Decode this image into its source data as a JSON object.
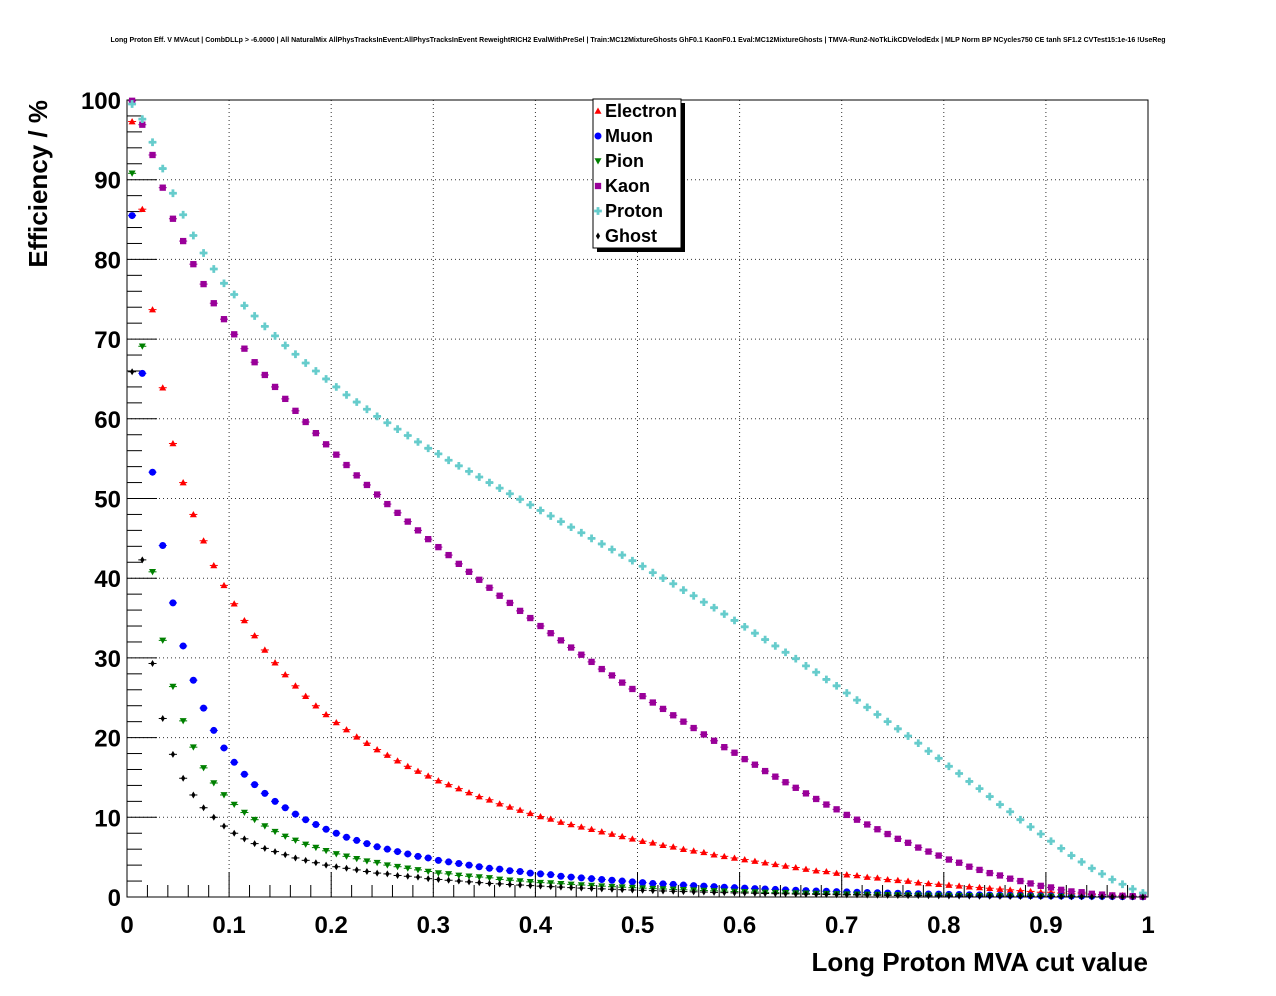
{
  "chart_data": {
    "type": "scatter",
    "title": "Long Proton Eff. V MVAcut | CombDLLp > -6.0000 | All NaturalMix AllPhysTracksInEvent:AllPhysTracksInEvent ReweightRICH2 EvalWithPreSel | Train:MC12MixtureGhosts GhF0.1 KaonF0.1 Eval:MC12MixtureGhosts | TMVA-Run2-NoTkLikCDVelodEdx | MLP Norm BP NCycles750 CE tanh SF1.2 CVTest15:1e-16 !UseReg",
    "xlabel": "Long Proton MVA cut value",
    "ylabel": "Efficiency / %",
    "xlim": [
      0,
      1
    ],
    "ylim": [
      0,
      100
    ],
    "x_ticks": [
      "0",
      "0.1",
      "0.2",
      "0.3",
      "0.4",
      "0.5",
      "0.6",
      "0.7",
      "0.8",
      "0.9",
      "1"
    ],
    "y_ticks": [
      "0",
      "10",
      "20",
      "30",
      "40",
      "50",
      "60",
      "70",
      "80",
      "90",
      "100"
    ],
    "grid": true,
    "legend_position": "top-center",
    "x": [
      0.005,
      0.015,
      0.025,
      0.035,
      0.045,
      0.055,
      0.065,
      0.075,
      0.085,
      0.095,
      0.105,
      0.115,
      0.125,
      0.135,
      0.145,
      0.155,
      0.165,
      0.175,
      0.185,
      0.195,
      0.205,
      0.215,
      0.225,
      0.235,
      0.245,
      0.255,
      0.265,
      0.275,
      0.285,
      0.295,
      0.305,
      0.315,
      0.325,
      0.335,
      0.345,
      0.355,
      0.365,
      0.375,
      0.385,
      0.395,
      0.405,
      0.415,
      0.425,
      0.435,
      0.445,
      0.455,
      0.465,
      0.475,
      0.485,
      0.495,
      0.505,
      0.515,
      0.525,
      0.535,
      0.545,
      0.555,
      0.565,
      0.575,
      0.585,
      0.595,
      0.605,
      0.615,
      0.625,
      0.635,
      0.645,
      0.655,
      0.665,
      0.675,
      0.685,
      0.695,
      0.705,
      0.715,
      0.725,
      0.735,
      0.745,
      0.755,
      0.765,
      0.775,
      0.785,
      0.795,
      0.805,
      0.815,
      0.825,
      0.835,
      0.845,
      0.855,
      0.865,
      0.875,
      0.885,
      0.895,
      0.905,
      0.915,
      0.925,
      0.935,
      0.945,
      0.955,
      0.965,
      0.975,
      0.985,
      0.995
    ],
    "series": [
      {
        "name": "Electron",
        "color": "#ff0000",
        "marker": "triangle-up",
        "values": [
          97.3,
          86.3,
          73.7,
          63.9,
          56.9,
          52.0,
          48.0,
          44.7,
          41.6,
          39.1,
          36.8,
          34.7,
          32.8,
          31.0,
          29.4,
          27.9,
          26.5,
          25.2,
          24.0,
          22.9,
          21.9,
          21.0,
          20.1,
          19.3,
          18.5,
          17.8,
          17.1,
          16.4,
          15.8,
          15.2,
          14.6,
          14.1,
          13.6,
          13.1,
          12.6,
          12.2,
          11.7,
          11.3,
          10.9,
          10.5,
          10.1,
          9.8,
          9.4,
          9.1,
          8.8,
          8.5,
          8.2,
          7.9,
          7.6,
          7.3,
          7.0,
          6.8,
          6.5,
          6.3,
          6.0,
          5.8,
          5.6,
          5.3,
          5.1,
          4.9,
          4.7,
          4.5,
          4.3,
          4.1,
          3.9,
          3.7,
          3.5,
          3.3,
          3.2,
          3.0,
          2.8,
          2.7,
          2.5,
          2.4,
          2.2,
          2.1,
          2.0,
          1.8,
          1.7,
          1.6,
          1.5,
          1.4,
          1.3,
          1.2,
          1.1,
          1.0,
          0.9,
          0.8,
          0.7,
          0.6,
          0.6,
          0.5,
          0.4,
          0.4,
          0.3,
          0.3,
          0.2,
          0.2,
          0.1,
          0.1
        ]
      },
      {
        "name": "Muon",
        "color": "#0000ff",
        "marker": "circle",
        "values": [
          85.5,
          65.7,
          53.3,
          44.1,
          36.9,
          31.5,
          27.2,
          23.7,
          20.9,
          18.7,
          16.9,
          15.4,
          14.1,
          13.0,
          12.0,
          11.2,
          10.4,
          9.7,
          9.1,
          8.5,
          8.0,
          7.5,
          7.1,
          6.7,
          6.3,
          6.0,
          5.7,
          5.4,
          5.1,
          4.9,
          4.6,
          4.4,
          4.2,
          4.0,
          3.8,
          3.6,
          3.5,
          3.3,
          3.2,
          3.0,
          2.9,
          2.8,
          2.6,
          2.5,
          2.4,
          2.3,
          2.2,
          2.1,
          2.0,
          1.9,
          1.8,
          1.7,
          1.65,
          1.58,
          1.5,
          1.43,
          1.36,
          1.3,
          1.23,
          1.17,
          1.11,
          1.05,
          1.0,
          0.95,
          0.9,
          0.85,
          0.8,
          0.76,
          0.72,
          0.68,
          0.64,
          0.6,
          0.56,
          0.53,
          0.5,
          0.47,
          0.44,
          0.41,
          0.38,
          0.36,
          0.33,
          0.31,
          0.29,
          0.27,
          0.25,
          0.23,
          0.21,
          0.19,
          0.17,
          0.16,
          0.14,
          0.13,
          0.11,
          0.1,
          0.09,
          0.08,
          0.06,
          0.05,
          0.04,
          0.03
        ]
      },
      {
        "name": "Pion",
        "color": "#008000",
        "marker": "triangle-down",
        "values": [
          90.8,
          69.1,
          40.8,
          32.2,
          26.4,
          22.1,
          18.8,
          16.2,
          14.3,
          12.8,
          11.6,
          10.6,
          9.7,
          8.9,
          8.2,
          7.6,
          7.1,
          6.6,
          6.2,
          5.8,
          5.4,
          5.1,
          4.8,
          4.5,
          4.3,
          4.0,
          3.8,
          3.6,
          3.4,
          3.2,
          3.0,
          2.9,
          2.7,
          2.6,
          2.5,
          2.4,
          2.2,
          2.1,
          2.0,
          1.9,
          1.8,
          1.75,
          1.66,
          1.58,
          1.5,
          1.43,
          1.36,
          1.29,
          1.23,
          1.17,
          1.11,
          1.05,
          1.0,
          0.95,
          0.9,
          0.86,
          0.81,
          0.77,
          0.73,
          0.69,
          0.65,
          0.62,
          0.58,
          0.55,
          0.52,
          0.49,
          0.46,
          0.44,
          0.41,
          0.39,
          0.36,
          0.34,
          0.32,
          0.3,
          0.28,
          0.26,
          0.24,
          0.23,
          0.21,
          0.19,
          0.18,
          0.16,
          0.15,
          0.14,
          0.13,
          0.12,
          0.11,
          0.1,
          0.09,
          0.08,
          0.07,
          0.06,
          0.05,
          0.05,
          0.04,
          0.03,
          0.03,
          0.02,
          0.02,
          0.01
        ]
      },
      {
        "name": "Kaon",
        "color": "#990099",
        "marker": "square",
        "values": [
          99.9,
          96.9,
          93.1,
          89.0,
          85.1,
          82.3,
          79.4,
          76.9,
          74.5,
          72.5,
          70.6,
          68.8,
          67.1,
          65.5,
          64.0,
          62.5,
          61.0,
          59.6,
          58.2,
          56.8,
          55.5,
          54.2,
          52.9,
          51.7,
          50.5,
          49.3,
          48.2,
          47.1,
          46.0,
          44.9,
          43.9,
          42.9,
          41.8,
          40.8,
          39.8,
          38.8,
          37.8,
          36.9,
          35.9,
          35.0,
          34.0,
          33.1,
          32.2,
          31.3,
          30.4,
          29.5,
          28.6,
          27.8,
          26.9,
          26.1,
          25.2,
          24.4,
          23.6,
          22.8,
          22.0,
          21.2,
          20.4,
          19.6,
          18.8,
          18.1,
          17.3,
          16.6,
          15.8,
          15.1,
          14.4,
          13.7,
          13.0,
          12.3,
          11.6,
          11.0,
          10.3,
          9.7,
          9.1,
          8.5,
          7.9,
          7.3,
          6.8,
          6.2,
          5.7,
          5.2,
          4.7,
          4.3,
          3.8,
          3.4,
          3.0,
          2.7,
          2.3,
          2.0,
          1.7,
          1.4,
          1.2,
          0.9,
          0.7,
          0.6,
          0.4,
          0.3,
          0.2,
          0.15,
          0.1,
          0.05
        ]
      },
      {
        "name": "Proton",
        "color": "#66cccc",
        "marker": "cross",
        "values": [
          99.5,
          97.6,
          94.7,
          91.4,
          88.3,
          85.6,
          83.0,
          80.8,
          78.8,
          77.0,
          75.6,
          74.2,
          72.9,
          71.6,
          70.4,
          69.2,
          68.1,
          67.0,
          66.0,
          65.0,
          64.0,
          63.0,
          62.1,
          61.2,
          60.3,
          59.5,
          58.7,
          57.9,
          57.1,
          56.3,
          55.6,
          54.8,
          54.1,
          53.4,
          52.7,
          52.0,
          51.3,
          50.6,
          49.9,
          49.2,
          48.5,
          47.8,
          47.1,
          46.4,
          45.7,
          45.0,
          44.3,
          43.6,
          42.9,
          42.2,
          41.5,
          40.7,
          40.0,
          39.3,
          38.5,
          37.8,
          37.0,
          36.3,
          35.5,
          34.7,
          33.9,
          33.1,
          32.3,
          31.5,
          30.7,
          29.9,
          29.0,
          28.2,
          27.3,
          26.5,
          25.6,
          24.7,
          23.8,
          22.9,
          22.0,
          21.1,
          20.2,
          19.3,
          18.3,
          17.4,
          16.4,
          15.5,
          14.5,
          13.6,
          12.6,
          11.6,
          10.7,
          9.7,
          8.8,
          7.9,
          7.0,
          6.1,
          5.2,
          4.4,
          3.6,
          2.9,
          2.2,
          1.6,
          1.0,
          0.5
        ]
      },
      {
        "name": "Ghost",
        "color": "#000000",
        "marker": "diamond",
        "values": [
          65.9,
          42.3,
          29.3,
          22.4,
          17.9,
          14.9,
          12.8,
          11.2,
          10.0,
          8.9,
          8.0,
          7.3,
          6.7,
          6.1,
          5.7,
          5.3,
          4.9,
          4.6,
          4.3,
          4.0,
          3.8,
          3.6,
          3.4,
          3.2,
          3.0,
          2.9,
          2.7,
          2.6,
          2.5,
          2.3,
          2.2,
          2.1,
          2.0,
          1.9,
          1.8,
          1.7,
          1.65,
          1.57,
          1.5,
          1.43,
          1.36,
          1.3,
          1.24,
          1.18,
          1.12,
          1.07,
          1.02,
          0.97,
          0.92,
          0.88,
          0.84,
          0.8,
          0.76,
          0.72,
          0.68,
          0.65,
          0.62,
          0.58,
          0.55,
          0.52,
          0.5,
          0.47,
          0.44,
          0.42,
          0.4,
          0.37,
          0.35,
          0.33,
          0.31,
          0.29,
          0.27,
          0.26,
          0.24,
          0.22,
          0.21,
          0.19,
          0.18,
          0.17,
          0.15,
          0.14,
          0.13,
          0.12,
          0.11,
          0.1,
          0.09,
          0.08,
          0.07,
          0.07,
          0.06,
          0.05,
          0.05,
          0.04,
          0.03,
          0.03,
          0.02,
          0.02,
          0.02,
          0.01,
          0.01,
          0.01
        ]
      }
    ]
  }
}
